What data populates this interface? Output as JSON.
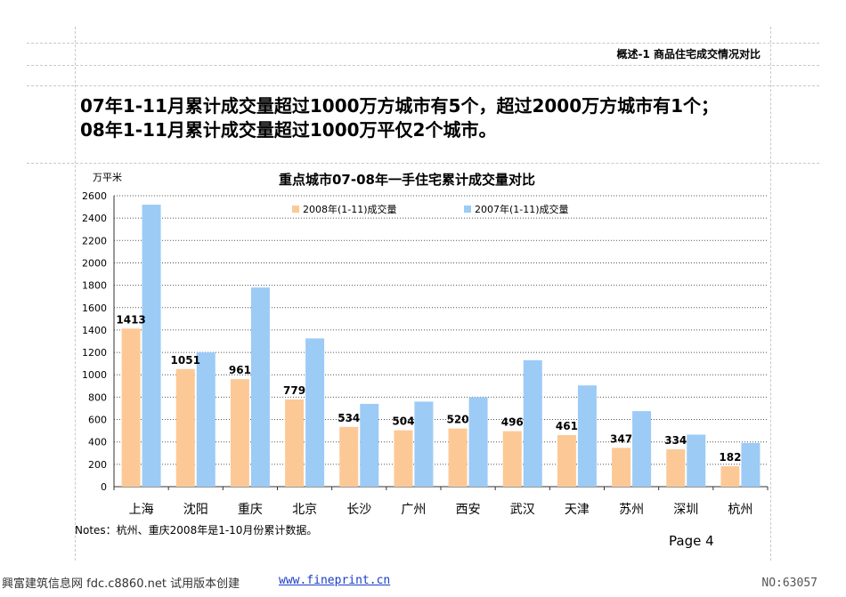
{
  "header": {
    "title": "概述-1  商品住宅成交情况对比"
  },
  "headline": {
    "line1": "07年1-11月累计成交量超过1000万方城市有5个，超过2000万方城市有1个；",
    "line2": "08年1-11月累计成交量超过1000万平仅2个城市。"
  },
  "chart_data": {
    "type": "bar",
    "title": "重点城市07-08年一手住宅累计成交量对比",
    "ylabel": "万平米",
    "xlabel": "",
    "ylim": [
      0,
      2600
    ],
    "yticks": [
      0,
      200,
      400,
      600,
      800,
      1000,
      1200,
      1400,
      1600,
      1800,
      2000,
      2200,
      2400,
      2600
    ],
    "grid": "horizontal-dotted",
    "legend_position": "top",
    "categories": [
      "上海",
      "沈阳",
      "重庆",
      "北京",
      "长沙",
      "广州",
      "西安",
      "武汉",
      "天津",
      "苏州",
      "深圳",
      "杭州"
    ],
    "series": [
      {
        "name": "2008年(1-11)成交量",
        "color": "#fcc996",
        "values": [
          1413,
          1051,
          961,
          779,
          534,
          504,
          520,
          496,
          461,
          347,
          334,
          182
        ],
        "labeled": true
      },
      {
        "name": "2007年(1-11)成交量",
        "color": "#9ccbf5",
        "values": [
          2520,
          1200,
          1780,
          1325,
          740,
          760,
          800,
          1130,
          905,
          675,
          465,
          390
        ],
        "labeled": false
      }
    ]
  },
  "notes": "Notes：杭州、重庆2008年是1-10月份累计数据。",
  "page": "Page 4",
  "footer": {
    "left": "興富建筑信息网 fdc.c8860.net 试用版本创建",
    "link": "www.fineprint.cn",
    "right": "NO:63057"
  }
}
